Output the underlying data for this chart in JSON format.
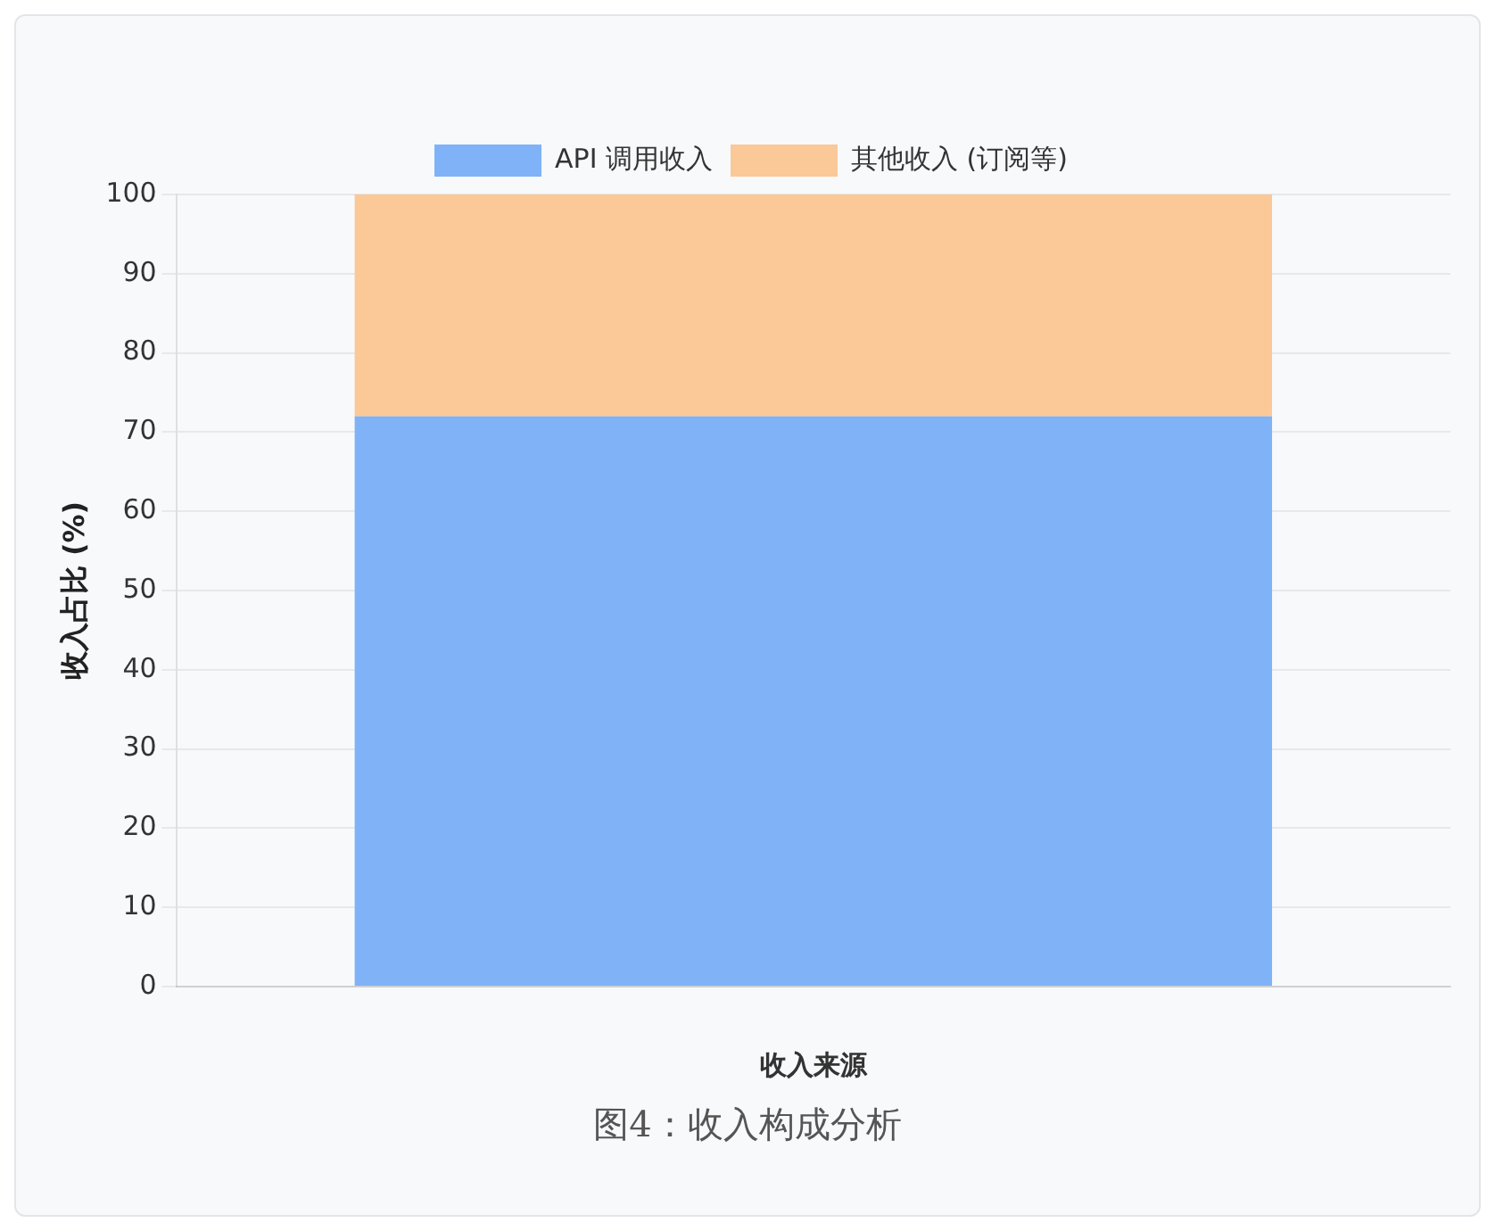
{
  "chart_data": {
    "type": "bar",
    "stacked": true,
    "categories": [
      null
    ],
    "series": [
      {
        "name": "API 调用收入",
        "color": "#7fb2f7",
        "values": [
          72
        ]
      },
      {
        "name": "其他收入 (订阅等)",
        "color": "#fbc898",
        "values": [
          28
        ]
      }
    ],
    "xlabel": "收入来源",
    "ylabel": "收入占比 (%)",
    "ylim": [
      0,
      100
    ],
    "yticks": [
      0,
      10,
      20,
      30,
      40,
      50,
      60,
      70,
      80,
      90,
      100
    ],
    "grid": "y",
    "legend": "top",
    "annotations": [
      "图4：收入构成分析"
    ]
  }
}
